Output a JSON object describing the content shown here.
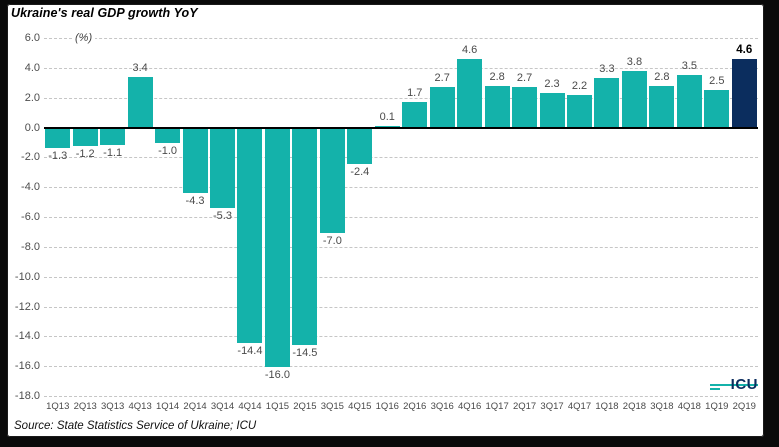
{
  "chart_data": {
    "type": "bar",
    "title": "Ukraine's real GDP growth YoY",
    "unit_label": "(%)",
    "categories": [
      "1Q13",
      "2Q13",
      "3Q13",
      "4Q13",
      "1Q14",
      "2Q14",
      "3Q14",
      "4Q14",
      "1Q15",
      "2Q15",
      "3Q15",
      "4Q15",
      "1Q16",
      "2Q16",
      "3Q16",
      "4Q16",
      "1Q17",
      "2Q17",
      "3Q17",
      "4Q17",
      "1Q18",
      "2Q18",
      "3Q18",
      "4Q18",
      "1Q19",
      "2Q19"
    ],
    "values": [
      -1.3,
      -1.2,
      -1.1,
      3.4,
      -1.0,
      -4.3,
      -5.3,
      -14.4,
      -16.0,
      -14.5,
      -7.0,
      -2.4,
      0.1,
      1.7,
      2.7,
      4.6,
      2.8,
      2.7,
      2.3,
      2.2,
      3.3,
      3.8,
      2.8,
      3.5,
      2.5,
      4.6
    ],
    "value_labels": [
      "-1.3",
      "-1.2",
      "-1.1",
      "3.4",
      "-1.0",
      "-4.3",
      "-5.3",
      "-14.4",
      "-16.0",
      "-14.5",
      "-7.0",
      "-2.4",
      "0.1",
      "1.7",
      "2.7",
      "4.6",
      "2.8",
      "2.7",
      "2.3",
      "2.2",
      "3.3",
      "3.8",
      "2.8",
      "3.5",
      "2.5",
      "4.6"
    ],
    "highlight_index": 25,
    "ylim": [
      -18.0,
      6.0
    ],
    "ytick_step": 2.0,
    "ytick_labels": [
      "6.0",
      "4.0",
      "2.0",
      "0.0",
      "-2.0",
      "-4.0",
      "-6.0",
      "-8.0",
      "-10.0",
      "-12.0",
      "-14.0",
      "-16.0",
      "-18.0"
    ],
    "grid": "dashed horizontal",
    "legend": "none",
    "xlabel": "",
    "ylabel": "(%)",
    "bar_color": "#14B2AA",
    "highlight_color": "#0B2D5E",
    "grid_color": "#c6c6c6",
    "zero_line_color": "#000000",
    "source": "Source: State Statistics Service of Ukraine; ICU",
    "logo_text": "ICU"
  }
}
